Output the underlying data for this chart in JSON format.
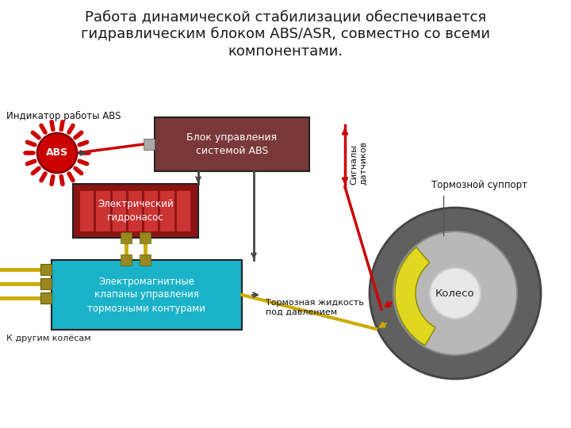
{
  "title_line1": "Работа динамической стабилизации обеспечивается",
  "title_line2": "гидравлическим блоком ABS/ASR, совместно со всеми",
  "title_line3": "компонентами.",
  "title_fontsize": 13,
  "bg_color": "#ffffff",
  "text_color": "#1a1a1a",
  "abs_indicator_label": "Индикатор работы ABS",
  "abs_control_label": "Блок управления\nсистемой ABS",
  "hydro_pump_label": "Электрический\nгидронасос",
  "solenoid_label": "Электромагнитные\nклапаны управления\nтормозными контурами",
  "wheel_label": "Колесо",
  "caliper_label": "Тормозной суппорт",
  "brake_fluid_label": "Тормозная жидкость\nпод давлением",
  "other_wheels_label": "К другим колёсам",
  "sensor_signals_label": "Сигналы\nдатчиков",
  "abs_box_color": "#7a3838",
  "hydro_pump_dark": "#8B1515",
  "hydro_pump_stripe": "#cc3333",
  "solenoid_color": "#1ab2c8",
  "abs_red": "#cc0000",
  "red_line": "#cc0000",
  "yellow_line": "#ccaa00",
  "dark_line": "#444444",
  "wheel_tire": "#606060",
  "wheel_rim": "#b8b8b8",
  "wheel_hub": "#e8e8e8",
  "caliper_color": "#e0d820",
  "connector_color": "#998822",
  "note_fontsize": 8.0
}
